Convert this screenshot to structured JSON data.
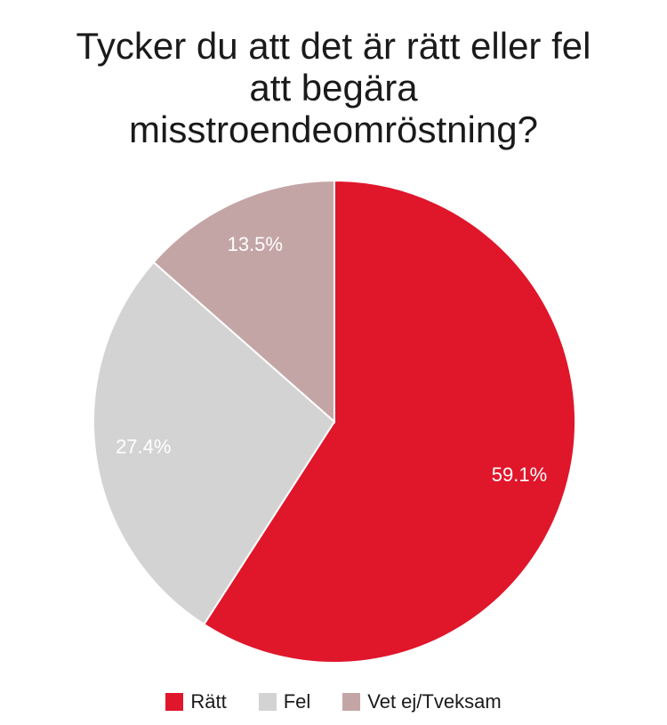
{
  "title_lines": [
    "Tycker du att det är rätt eller fel",
    "att begära",
    "misstroendeomröstning?"
  ],
  "chart_data": {
    "type": "pie",
    "title": "Tycker du att det är rätt eller fel att begära misstroendeomröstning?",
    "categories": [
      "Rätt",
      "Fel",
      "Vet ej/Tveksam"
    ],
    "values": [
      59.1,
      27.4,
      13.5
    ],
    "labels": [
      "59.1%",
      "27.4%",
      "13.5%"
    ],
    "colors": [
      "#e0162b",
      "#d3d3d3",
      "#c4a5a5"
    ],
    "start": "12 o'clock",
    "direction": "clockwise",
    "legend_position": "bottom"
  }
}
